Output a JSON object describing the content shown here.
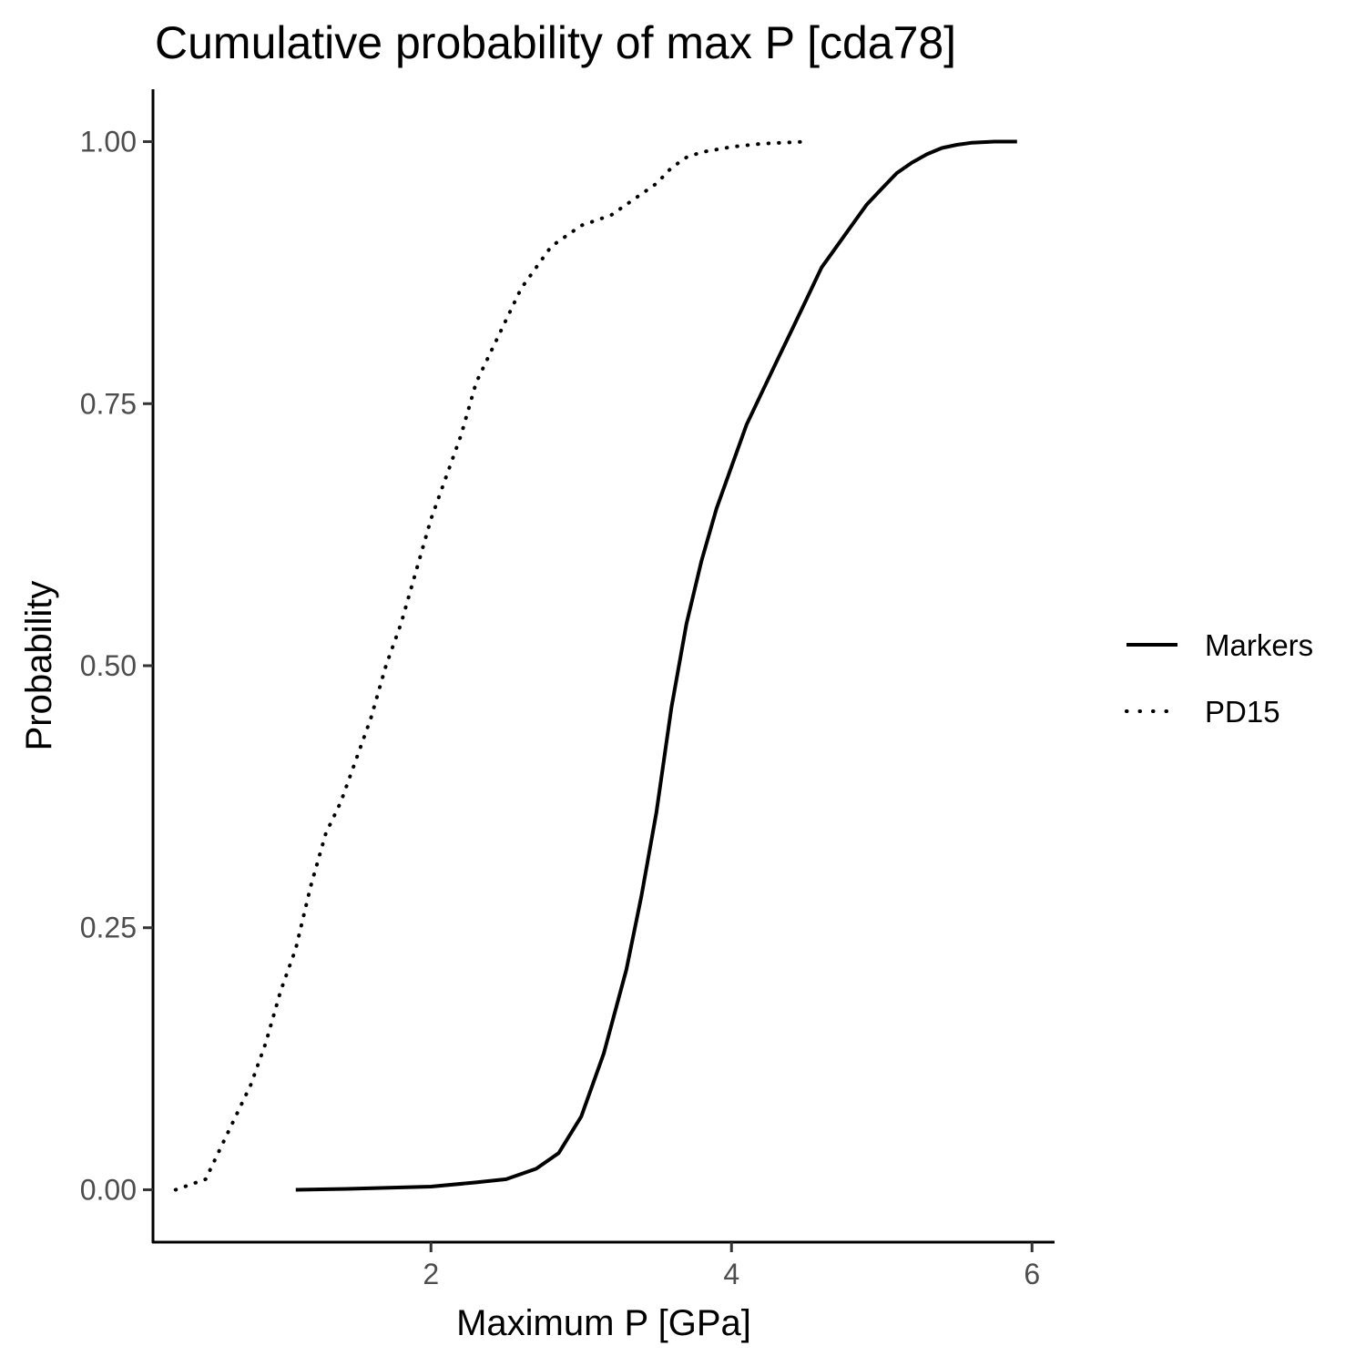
{
  "chart_data": {
    "type": "line",
    "title": "Cumulative probability of max P [cda78]",
    "xlabel": "Maximum P [GPa]",
    "ylabel": "Probability",
    "xlim": [
      0.15,
      6.15
    ],
    "ylim": [
      -0.05,
      1.05
    ],
    "x_ticks": [
      2,
      4,
      6
    ],
    "x_tick_labels": [
      "2",
      "4",
      "6"
    ],
    "y_ticks": [
      0,
      0.25,
      0.5,
      0.75,
      1
    ],
    "y_tick_labels": [
      "0.00",
      "0.25",
      "0.50",
      "0.75",
      "1.00"
    ],
    "grid": false,
    "legend_position": "right",
    "series": [
      {
        "name": "Markers",
        "line_style": "solid",
        "color": "#000000",
        "x": [
          1.1,
          1.5,
          2.0,
          2.3,
          2.5,
          2.7,
          2.85,
          3.0,
          3.15,
          3.3,
          3.4,
          3.5,
          3.6,
          3.7,
          3.8,
          3.9,
          4.0,
          4.1,
          4.2,
          4.3,
          4.4,
          4.5,
          4.6,
          4.7,
          4.8,
          4.9,
          5.0,
          5.1,
          5.2,
          5.3,
          5.4,
          5.5,
          5.6,
          5.75,
          5.9
        ],
        "y": [
          0.0,
          0.001,
          0.003,
          0.007,
          0.01,
          0.02,
          0.035,
          0.07,
          0.13,
          0.21,
          0.28,
          0.36,
          0.46,
          0.54,
          0.6,
          0.65,
          0.69,
          0.73,
          0.76,
          0.79,
          0.82,
          0.85,
          0.88,
          0.9,
          0.92,
          0.94,
          0.955,
          0.97,
          0.98,
          0.988,
          0.994,
          0.997,
          0.999,
          1.0,
          1.0
        ]
      },
      {
        "name": "PD15",
        "line_style": "dotted",
        "color": "#000000",
        "x": [
          0.3,
          0.5,
          0.6,
          0.7,
          0.8,
          0.9,
          1.0,
          1.1,
          1.2,
          1.3,
          1.4,
          1.5,
          1.6,
          1.7,
          1.8,
          1.9,
          2.0,
          2.1,
          2.2,
          2.3,
          2.4,
          2.5,
          2.6,
          2.7,
          2.8,
          2.9,
          3.0,
          3.1,
          3.2,
          3.3,
          3.4,
          3.5,
          3.6,
          3.7,
          3.8,
          4.0,
          4.2,
          4.5
        ],
        "y": [
          0.0,
          0.01,
          0.04,
          0.07,
          0.1,
          0.14,
          0.19,
          0.23,
          0.29,
          0.34,
          0.37,
          0.41,
          0.45,
          0.5,
          0.54,
          0.59,
          0.64,
          0.68,
          0.72,
          0.77,
          0.8,
          0.83,
          0.86,
          0.88,
          0.9,
          0.91,
          0.92,
          0.925,
          0.93,
          0.94,
          0.95,
          0.96,
          0.975,
          0.985,
          0.99,
          0.995,
          0.998,
          1.0
        ]
      }
    ]
  }
}
